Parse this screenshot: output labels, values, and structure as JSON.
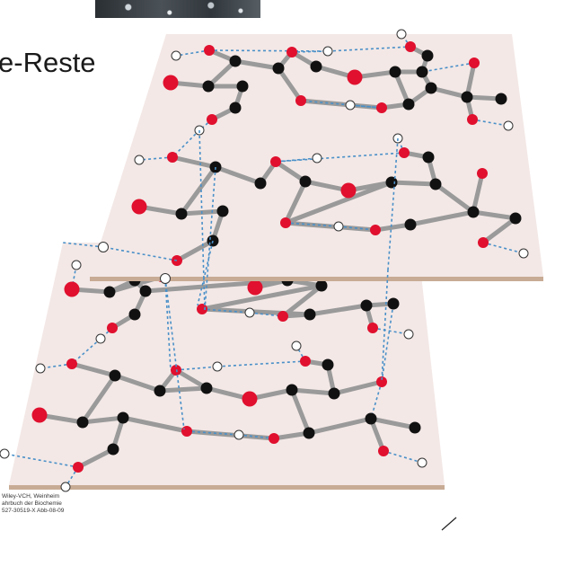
{
  "title": "e-Reste",
  "credit": {
    "line1": "Wiley-VCH, Weinheim",
    "line2": "ahrbuch der Biochemie",
    "line3": "527-30519-X   Abb-08-09"
  },
  "colors": {
    "sheet_fill": "#f3e8e6",
    "sheet_edge": "#c8ab94",
    "bond": "#9a9a9a",
    "hbond": "#4a90c8",
    "carbon": "#111111",
    "oxygen": "#e0102e",
    "hydrogen": "#ffffff"
  },
  "icons": {
    "photo": "photo-thumbnail",
    "pen": "pen-stroke-icon"
  }
}
